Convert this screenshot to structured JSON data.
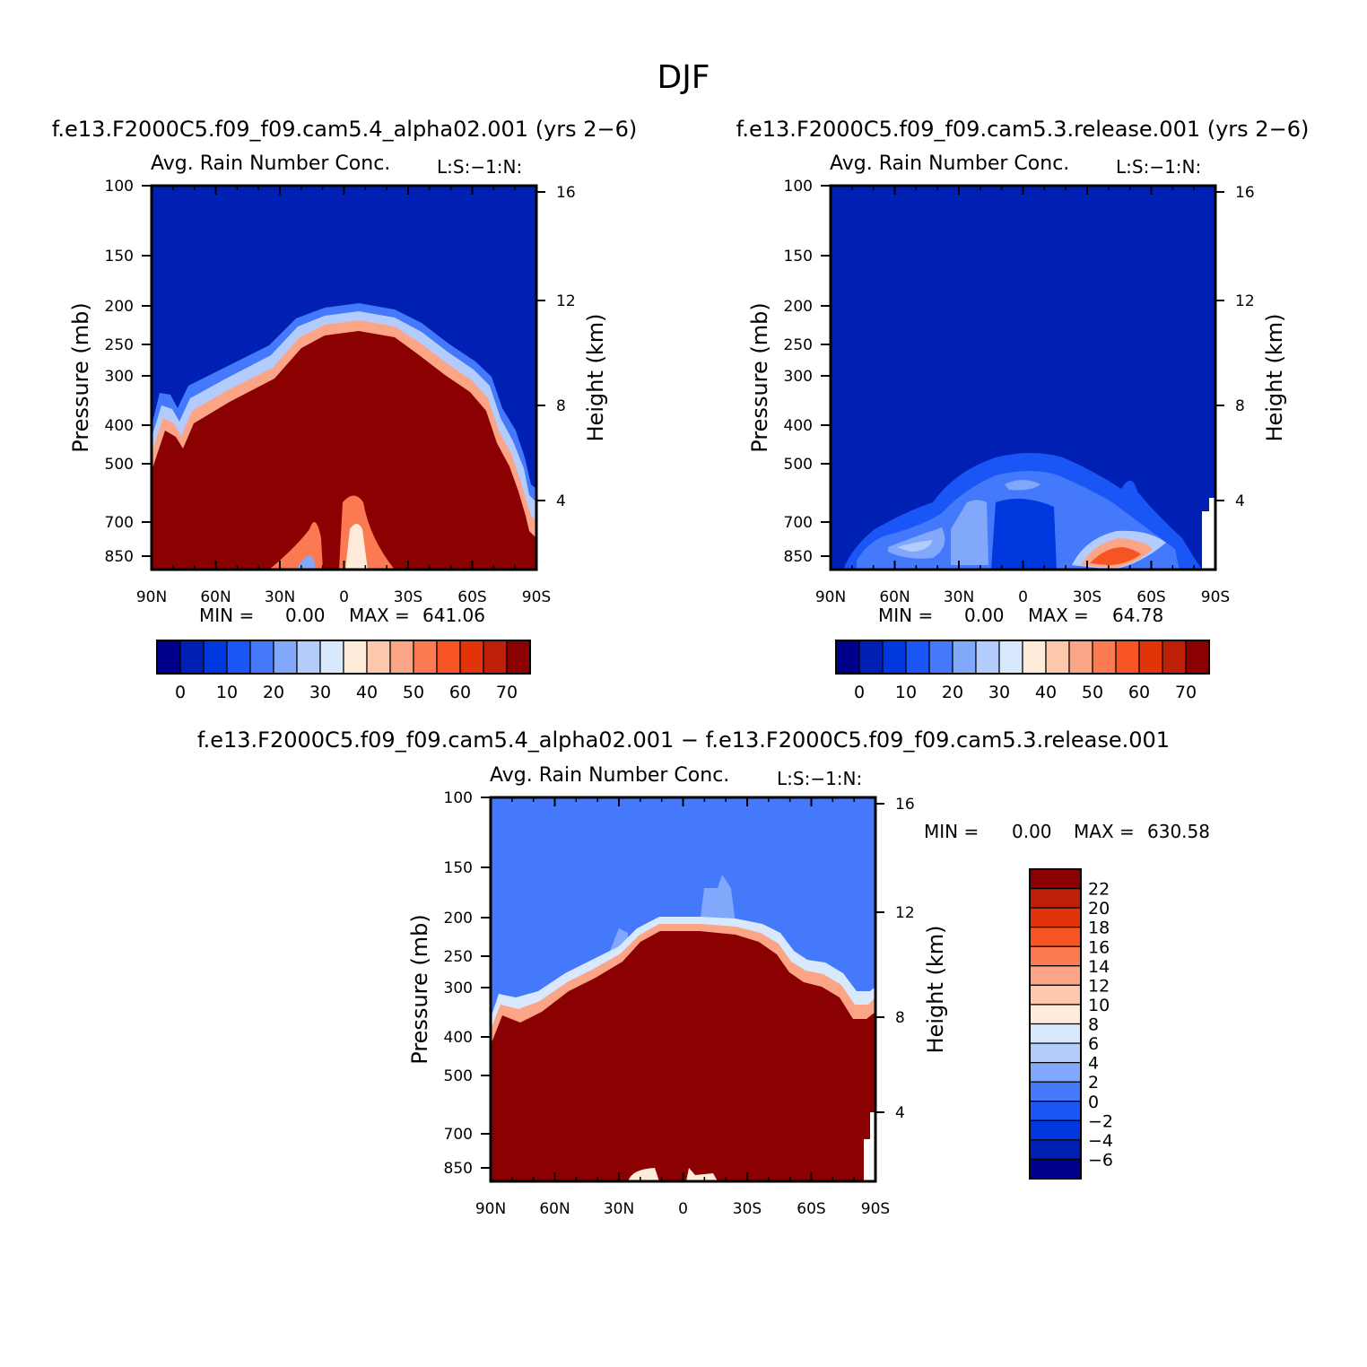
{
  "figure_title": "DJF",
  "chart_data": [
    {
      "type": "contour",
      "case_title": "f.e13.F2000C5.f09_f09.cam5.4_alpha02.001 (yrs 2−6)",
      "title": "Avg. Rain Number Conc.",
      "level_code": "L:S:−1:N:",
      "ylabel": "Pressure (mb)",
      "ylabel_right": "Height (km)",
      "x_ticks": [
        "90N",
        "60N",
        "30N",
        "0",
        "30S",
        "60S",
        "90S"
      ],
      "y_ticks": [
        "100",
        "150",
        "200",
        "250",
        "300",
        "400",
        "500",
        "700",
        "850"
      ],
      "y_ticks_right": [
        "16",
        "12",
        "8",
        "4"
      ],
      "min_label": "MIN =",
      "min_value": "0.00",
      "max_label": "MAX =",
      "max_value": "641.06",
      "colorbar_labels": [
        "0",
        "10",
        "20",
        "30",
        "40",
        "50",
        "60",
        "70"
      ]
    },
    {
      "type": "contour",
      "case_title": "f.e13.F2000C5.f09_f09.cam5.3.release.001 (yrs 2−6)",
      "title": "Avg. Rain Number Conc.",
      "level_code": "L:S:−1:N:",
      "ylabel": "Pressure (mb)",
      "ylabel_right": "Height (km)",
      "x_ticks": [
        "90N",
        "60N",
        "30N",
        "0",
        "30S",
        "60S",
        "90S"
      ],
      "y_ticks": [
        "100",
        "150",
        "200",
        "250",
        "300",
        "400",
        "500",
        "700",
        "850"
      ],
      "y_ticks_right": [
        "16",
        "12",
        "8",
        "4"
      ],
      "min_label": "MIN =",
      "min_value": "0.00",
      "max_label": "MAX =",
      "max_value": "64.78",
      "colorbar_labels": [
        "0",
        "10",
        "20",
        "30",
        "40",
        "50",
        "60",
        "70"
      ]
    },
    {
      "type": "contour",
      "case_title": "f.e13.F2000C5.f09_f09.cam5.4_alpha02.001 − f.e13.F2000C5.f09_f09.cam5.3.release.001",
      "title": "Avg. Rain Number Conc.",
      "level_code": "L:S:−1:N:",
      "ylabel": "Pressure (mb)",
      "ylabel_right": "Height (km)",
      "x_ticks": [
        "90N",
        "60N",
        "30N",
        "0",
        "30S",
        "60S",
        "90S"
      ],
      "y_ticks": [
        "100",
        "150",
        "200",
        "250",
        "300",
        "400",
        "500",
        "700",
        "850"
      ],
      "y_ticks_right": [
        "16",
        "12",
        "8",
        "4"
      ],
      "min_label": "MIN =",
      "min_value": "0.00",
      "max_label": "MAX =",
      "max_value": "630.58",
      "colorbar_labels": [
        "22",
        "20",
        "18",
        "16",
        "14",
        "12",
        "10",
        "8",
        "6",
        "4",
        "2",
        "0",
        "−2",
        "−4",
        "−6"
      ]
    }
  ],
  "palette": [
    "#00008c",
    "#0020b4",
    "#0038e0",
    "#1a55f5",
    "#4479fb",
    "#82a8fb",
    "#b4ccfc",
    "#d8e8fd",
    "#feebd9",
    "#fdc8ae",
    "#fca486",
    "#fb7a52",
    "#f75424",
    "#e23409",
    "#be2007",
    "#8b0000"
  ]
}
